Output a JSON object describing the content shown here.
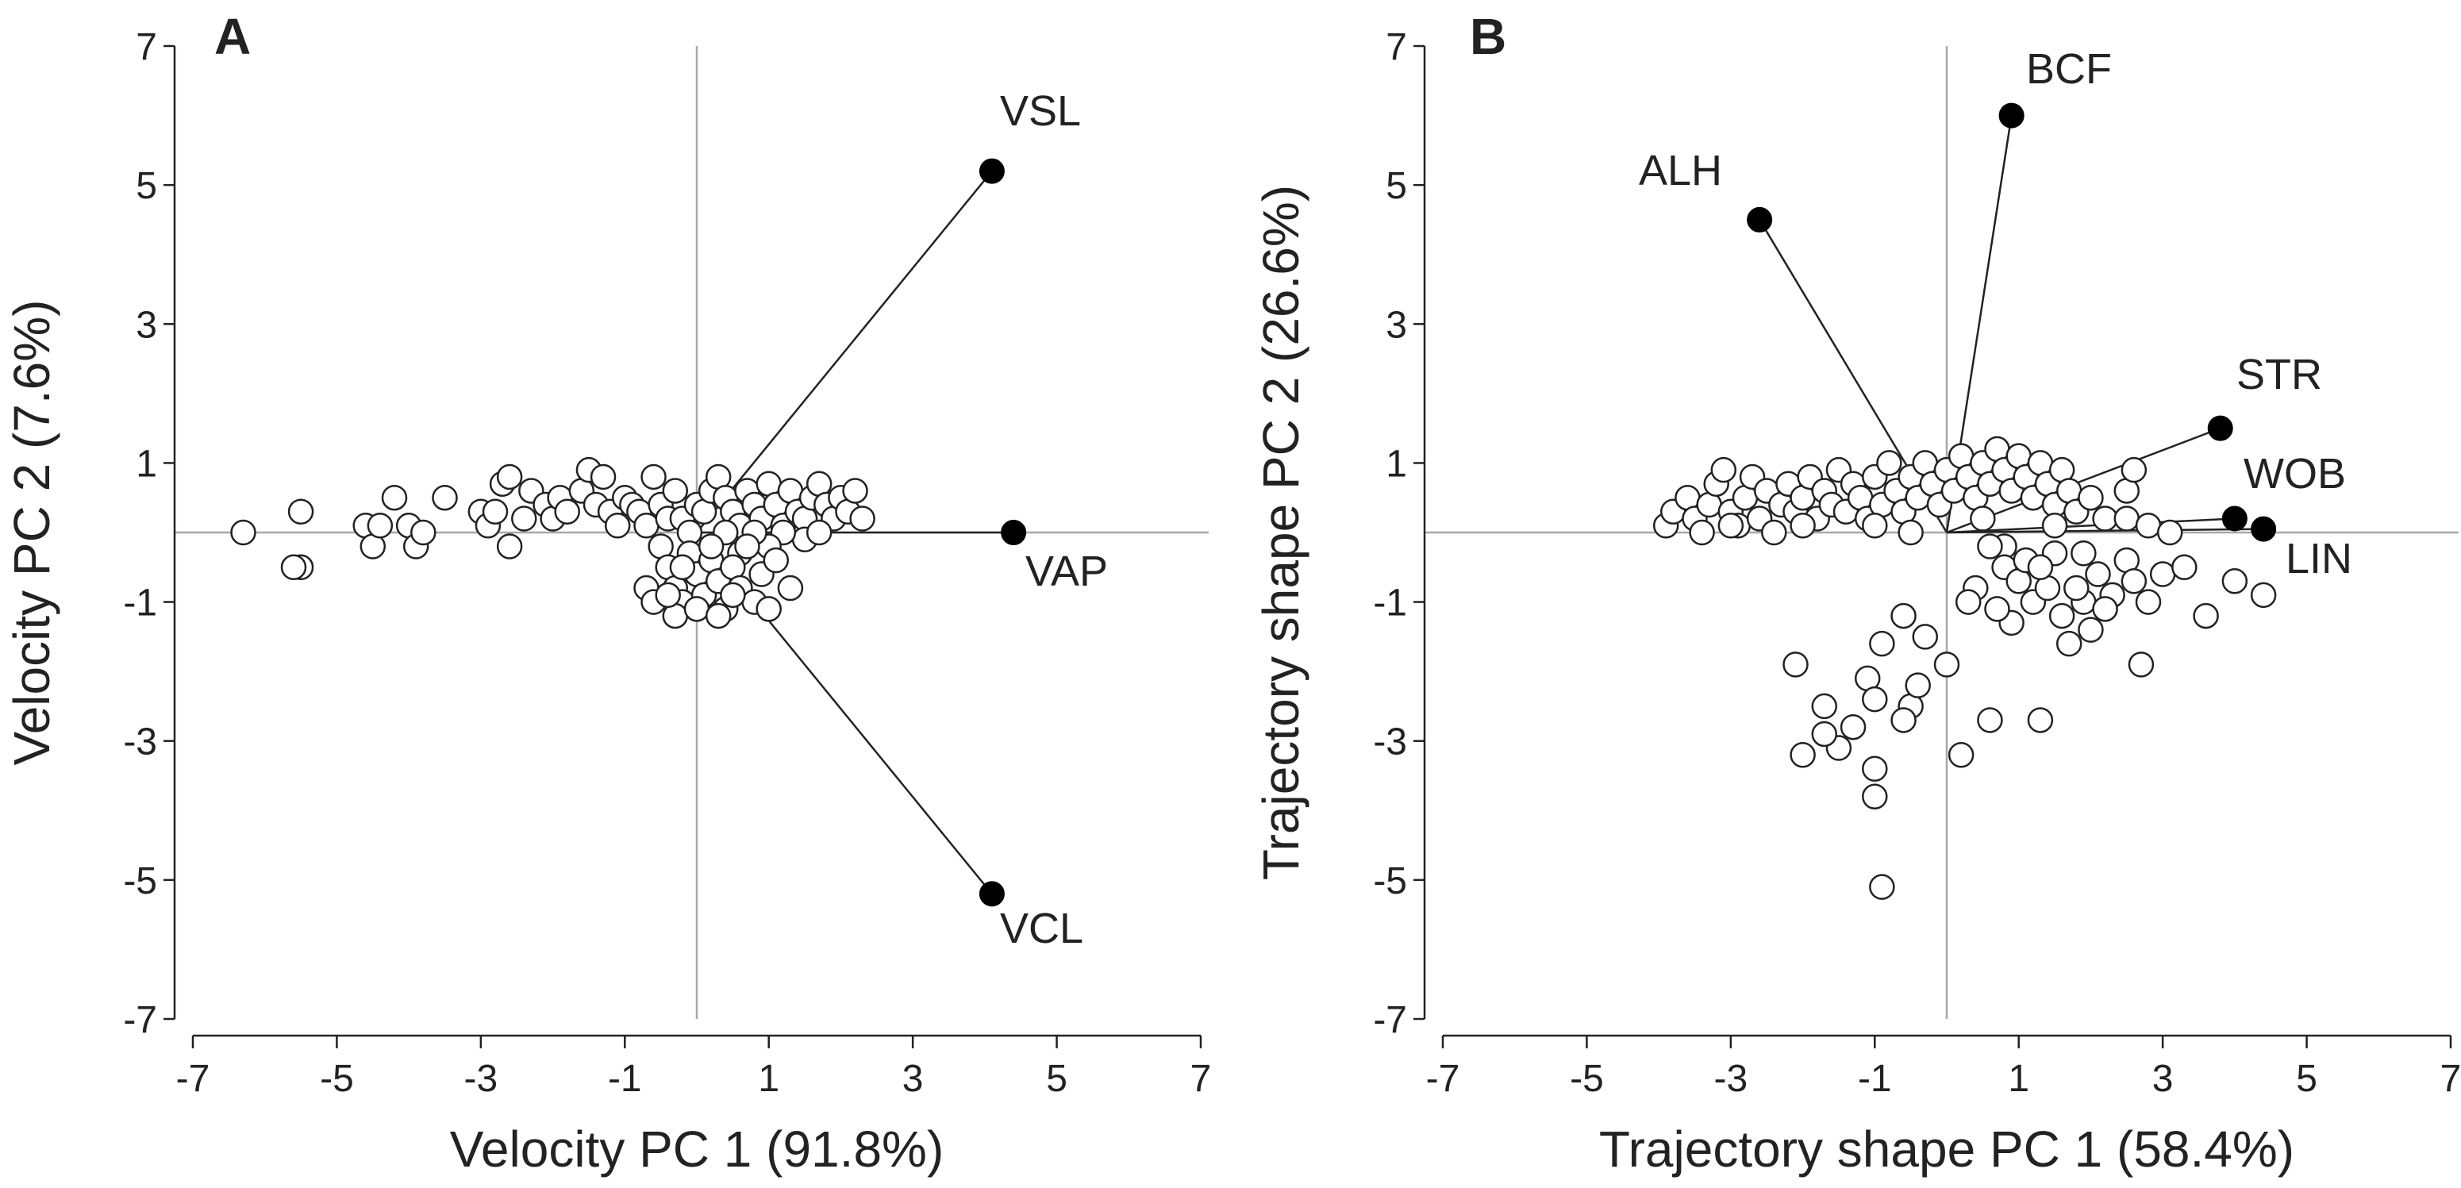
{
  "chart_data": [
    {
      "type": "scatter",
      "panel_label": "A",
      "xlabel": "Velocity PC 1 (91.8%)",
      "ylabel": "Velocity PC 2 (7.6%)",
      "xlim": [
        -7,
        7
      ],
      "ylim": [
        -7,
        7
      ],
      "xticks": [
        "-7",
        "-5",
        "-3",
        "-1",
        "1",
        "3",
        "5",
        "7"
      ],
      "yticks": [
        "7",
        "5",
        "3",
        "1",
        "-1",
        "-3",
        "-5",
        "-7"
      ],
      "reference_lines": {
        "x": 0,
        "y": 0
      },
      "loadings": [
        {
          "label": "VSL",
          "x": 4.1,
          "y": 5.2
        },
        {
          "label": "VAP",
          "x": 4.4,
          "y": 0.0
        },
        {
          "label": "VCL",
          "x": 4.1,
          "y": -5.2
        }
      ],
      "scores": [
        [
          -6.3,
          0.0
        ],
        [
          -5.5,
          0.3
        ],
        [
          -5.5,
          -0.5
        ],
        [
          -5.6,
          -0.5
        ],
        [
          -4.6,
          0.1
        ],
        [
          -4.5,
          -0.2
        ],
        [
          -4.4,
          0.1
        ],
        [
          -4.2,
          0.5
        ],
        [
          -4.0,
          0.1
        ],
        [
          -3.9,
          -0.2
        ],
        [
          -3.8,
          0.0
        ],
        [
          -3.5,
          0.5
        ],
        [
          -3.0,
          0.3
        ],
        [
          -2.9,
          0.1
        ],
        [
          -2.8,
          0.3
        ],
        [
          -2.7,
          0.7
        ],
        [
          -2.6,
          0.8
        ],
        [
          -2.6,
          -0.2
        ],
        [
          -2.4,
          0.2
        ],
        [
          -2.3,
          0.6
        ],
        [
          -2.1,
          0.4
        ],
        [
          -2.0,
          0.2
        ],
        [
          -1.9,
          0.5
        ],
        [
          -1.8,
          0.3
        ],
        [
          -1.6,
          0.6
        ],
        [
          -1.5,
          0.9
        ],
        [
          -1.4,
          0.4
        ],
        [
          -1.3,
          0.8
        ],
        [
          -1.2,
          0.3
        ],
        [
          -1.1,
          0.1
        ],
        [
          -1.0,
          0.5
        ],
        [
          -0.9,
          0.4
        ],
        [
          -0.8,
          0.3
        ],
        [
          -0.7,
          0.1
        ],
        [
          -0.6,
          0.8
        ],
        [
          -0.5,
          0.4
        ],
        [
          -0.4,
          0.2
        ],
        [
          -0.3,
          0.6
        ],
        [
          -0.2,
          0.2
        ],
        [
          -0.1,
          0.0
        ],
        [
          0.0,
          0.4
        ],
        [
          0.1,
          0.3
        ],
        [
          0.2,
          0.6
        ],
        [
          0.3,
          0.8
        ],
        [
          0.4,
          0.5
        ],
        [
          0.5,
          0.3
        ],
        [
          0.6,
          0.1
        ],
        [
          0.7,
          0.6
        ],
        [
          0.8,
          0.4
        ],
        [
          0.9,
          0.2
        ],
        [
          1.0,
          0.7
        ],
        [
          1.1,
          0.4
        ],
        [
          1.2,
          0.1
        ],
        [
          1.3,
          0.6
        ],
        [
          1.4,
          0.3
        ],
        [
          1.5,
          0.2
        ],
        [
          1.6,
          0.5
        ],
        [
          1.7,
          0.7
        ],
        [
          1.8,
          0.4
        ],
        [
          1.9,
          0.2
        ],
        [
          2.0,
          0.5
        ],
        [
          2.1,
          0.3
        ],
        [
          2.2,
          0.6
        ],
        [
          2.3,
          0.2
        ],
        [
          1.5,
          -0.1
        ],
        [
          1.2,
          0.0
        ],
        [
          1.0,
          -0.2
        ],
        [
          0.8,
          0.0
        ],
        [
          1.7,
          0.0
        ],
        [
          0.4,
          0.0
        ],
        [
          0.6,
          -0.3
        ],
        [
          -0.5,
          -0.2
        ],
        [
          -0.4,
          -0.5
        ],
        [
          -0.3,
          -0.8
        ],
        [
          -0.2,
          -1.0
        ],
        [
          -0.1,
          -0.3
        ],
        [
          0.0,
          -0.6
        ],
        [
          0.1,
          -0.9
        ],
        [
          0.2,
          -0.4
        ],
        [
          0.3,
          -0.7
        ],
        [
          0.4,
          -1.1
        ],
        [
          0.5,
          -0.5
        ],
        [
          0.6,
          -0.8
        ],
        [
          0.7,
          -0.2
        ],
        [
          0.8,
          -1.0
        ],
        [
          0.9,
          -0.6
        ],
        [
          1.0,
          -1.1
        ],
        [
          1.1,
          -0.4
        ],
        [
          1.3,
          -0.8
        ],
        [
          -0.7,
          -0.8
        ],
        [
          -0.6,
          -1.0
        ],
        [
          -0.3,
          -1.2
        ],
        [
          0.0,
          -1.1
        ],
        [
          0.3,
          -1.2
        ],
        [
          -0.4,
          -0.9
        ],
        [
          0.5,
          -0.9
        ],
        [
          0.2,
          -0.2
        ],
        [
          -0.2,
          -0.5
        ]
      ]
    },
    {
      "type": "scatter",
      "panel_label": "B",
      "xlabel": "Trajectory shape PC 1 (58.4%)",
      "ylabel": "Trajectory shape PC 2 (26.6%)",
      "xlim": [
        -7,
        7
      ],
      "ylim": [
        -7,
        7
      ],
      "xticks": [
        "-7",
        "-5",
        "-3",
        "-1",
        "1",
        "3",
        "5",
        "7"
      ],
      "yticks": [
        "7",
        "5",
        "3",
        "1",
        "-1",
        "-3",
        "-5",
        "-7"
      ],
      "reference_lines": {
        "x": 0,
        "y": 0
      },
      "loadings": [
        {
          "label": "BCF",
          "x": 0.9,
          "y": 6.0
        },
        {
          "label": "ALH",
          "x": -2.6,
          "y": 4.5
        },
        {
          "label": "STR",
          "x": 3.8,
          "y": 1.5
        },
        {
          "label": "WOB",
          "x": 4.0,
          "y": 0.2
        },
        {
          "label": "LIN",
          "x": 4.4,
          "y": 0.05
        }
      ],
      "scores": [
        [
          -3.9,
          0.1
        ],
        [
          -3.8,
          0.3
        ],
        [
          -3.6,
          0.5
        ],
        [
          -3.5,
          0.2
        ],
        [
          -3.4,
          0.0
        ],
        [
          -3.3,
          0.4
        ],
        [
          -3.2,
          0.7
        ],
        [
          -3.1,
          0.9
        ],
        [
          -3.0,
          0.3
        ],
        [
          -2.9,
          0.1
        ],
        [
          -2.8,
          0.5
        ],
        [
          -2.7,
          0.8
        ],
        [
          -2.6,
          0.2
        ],
        [
          -2.5,
          0.6
        ],
        [
          -2.4,
          0.0
        ],
        [
          -2.3,
          0.4
        ],
        [
          -2.2,
          0.7
        ],
        [
          -2.1,
          0.3
        ],
        [
          -2.0,
          0.5
        ],
        [
          -1.9,
          0.8
        ],
        [
          -1.8,
          0.2
        ],
        [
          -1.7,
          0.6
        ],
        [
          -1.6,
          0.4
        ],
        [
          -1.5,
          0.9
        ],
        [
          -1.4,
          0.3
        ],
        [
          -1.3,
          0.7
        ],
        [
          -1.2,
          0.5
        ],
        [
          -1.1,
          0.2
        ],
        [
          -1.0,
          0.8
        ],
        [
          -0.9,
          0.4
        ],
        [
          -0.8,
          1.0
        ],
        [
          -0.7,
          0.6
        ],
        [
          -0.6,
          0.3
        ],
        [
          -0.5,
          0.8
        ],
        [
          -0.4,
          0.5
        ],
        [
          -0.3,
          1.0
        ],
        [
          -0.2,
          0.7
        ],
        [
          -0.1,
          0.4
        ],
        [
          0.0,
          0.9
        ],
        [
          0.1,
          0.6
        ],
        [
          0.2,
          1.1
        ],
        [
          0.3,
          0.8
        ],
        [
          0.4,
          0.5
        ],
        [
          0.5,
          1.0
        ],
        [
          0.6,
          0.7
        ],
        [
          0.7,
          1.2
        ],
        [
          0.8,
          0.9
        ],
        [
          0.9,
          0.6
        ],
        [
          1.0,
          1.1
        ],
        [
          1.1,
          0.8
        ],
        [
          1.2,
          0.5
        ],
        [
          1.3,
          1.0
        ],
        [
          1.4,
          0.7
        ],
        [
          1.5,
          0.4
        ],
        [
          1.6,
          0.9
        ],
        [
          1.7,
          0.6
        ],
        [
          1.8,
          0.3
        ],
        [
          2.0,
          0.5
        ],
        [
          2.2,
          0.2
        ],
        [
          2.5,
          0.6
        ],
        [
          2.6,
          0.9
        ],
        [
          -0.5,
          0.0
        ],
        [
          0.5,
          0.2
        ],
        [
          1.5,
          0.1
        ],
        [
          2.5,
          0.2
        ],
        [
          -1.0,
          0.1
        ],
        [
          -2.0,
          0.1
        ],
        [
          -3.0,
          0.1
        ],
        [
          0.8,
          -0.2
        ],
        [
          1.9,
          -0.3
        ],
        [
          2.8,
          0.1
        ],
        [
          3.1,
          0.0
        ],
        [
          0.6,
          -0.2
        ],
        [
          0.8,
          -0.5
        ],
        [
          1.0,
          -0.7
        ],
        [
          1.2,
          -1.0
        ],
        [
          1.4,
          -0.8
        ],
        [
          1.6,
          -1.2
        ],
        [
          1.7,
          -1.6
        ],
        [
          1.9,
          -1.0
        ],
        [
          2.1,
          -0.6
        ],
        [
          2.3,
          -0.9
        ],
        [
          2.5,
          -0.4
        ],
        [
          2.6,
          -0.7
        ],
        [
          1.5,
          -0.3
        ],
        [
          0.9,
          -1.3
        ],
        [
          0.7,
          -1.1
        ],
        [
          0.4,
          -0.8
        ],
        [
          0.3,
          -1.0
        ],
        [
          1.1,
          -0.4
        ],
        [
          2.0,
          -1.4
        ],
        [
          2.8,
          -1.0
        ],
        [
          3.0,
          -0.6
        ],
        [
          3.3,
          -0.5
        ],
        [
          3.6,
          -1.2
        ],
        [
          4.0,
          -0.7
        ],
        [
          4.4,
          -0.9
        ],
        [
          1.3,
          -0.5
        ],
        [
          1.8,
          -0.8
        ],
        [
          2.2,
          -1.1
        ],
        [
          2.7,
          -1.9
        ],
        [
          -2.1,
          -1.9
        ],
        [
          -1.7,
          -2.5
        ],
        [
          -1.5,
          -3.1
        ],
        [
          -1.7,
          -2.9
        ],
        [
          -2.0,
          -3.2
        ],
        [
          -1.3,
          -2.8
        ],
        [
          -1.1,
          -2.1
        ],
        [
          -1.0,
          -2.4
        ],
        [
          -0.9,
          -1.6
        ],
        [
          -0.6,
          -1.2
        ],
        [
          -0.5,
          -2.5
        ],
        [
          -0.4,
          -2.2
        ],
        [
          -0.3,
          -1.5
        ],
        [
          -0.6,
          -2.7
        ],
        [
          -1.0,
          -3.4
        ],
        [
          -1.0,
          -3.8
        ],
        [
          -0.9,
          -5.1
        ],
        [
          0.0,
          -1.9
        ],
        [
          0.2,
          -3.2
        ],
        [
          0.6,
          -2.7
        ],
        [
          1.3,
          -2.7
        ]
      ]
    }
  ]
}
